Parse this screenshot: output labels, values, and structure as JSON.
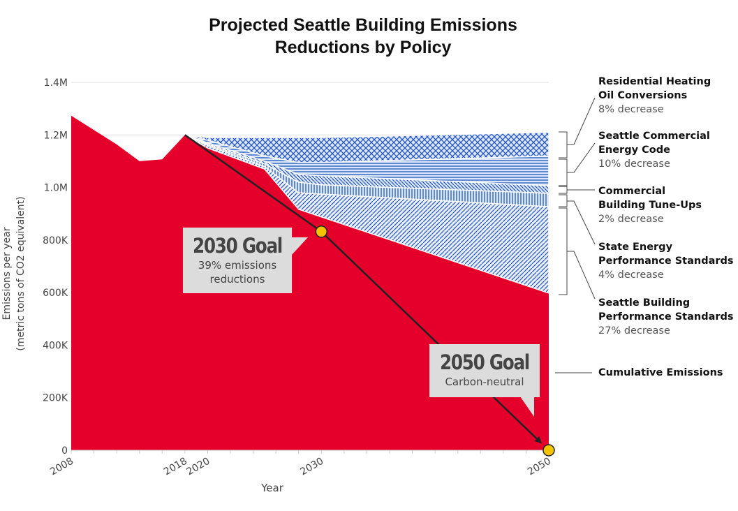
{
  "title_line1": "Projected Seattle Building Emissions",
  "title_line2": "Reductions by Policy",
  "colors": {
    "cumulative": "#e4002b",
    "policy_line": "#2255bb",
    "policy_bg": "#dbe6f7",
    "goal_marker": "#f5c400",
    "callout_bg": "#dcdcdc"
  },
  "chart_data": {
    "type": "area",
    "title": "Projected Seattle Building Emissions Reductions by Policy",
    "xlabel": "Year",
    "ylabel_line1": "Emissions per year",
    "ylabel_line2": "(metric tons of CO2 equivalent)",
    "xlim": [
      2008,
      2050
    ],
    "ylim": [
      0,
      1400000
    ],
    "yticks": [
      0,
      200000,
      400000,
      600000,
      800000,
      1000000,
      1200000,
      1400000
    ],
    "ytick_labels": [
      "0",
      "200K",
      "400K",
      "600K",
      "800K",
      "1.0M",
      "1.2M",
      "1.4M"
    ],
    "xticks": [
      2008,
      2018,
      2020,
      2030,
      2050
    ],
    "xtick_labels": [
      "2008",
      "2018",
      "2020",
      "2030",
      "2050"
    ],
    "grid": true,
    "cumulative": {
      "name": "Cumulative Emissions",
      "x": [
        2008,
        2012,
        2014,
        2016,
        2018,
        2020,
        2025,
        2028,
        2030,
        2050
      ],
      "y": [
        1273000,
        1164000,
        1100000,
        1107000,
        1200000,
        1150000,
        1070000,
        917000,
        888000,
        598000
      ]
    },
    "policy_x": [
      2018,
      2020,
      2025,
      2028,
      2030,
      2050
    ],
    "policies_stacked_bottom_to_top": [
      {
        "name": "Seattle Building Performance Standards",
        "pattern": "diag-up",
        "values": [
          0,
          10000,
          10000,
          63000,
          87000,
          329000
        ]
      },
      {
        "name": "State Energy Performance Standards",
        "pattern": "vertical",
        "values": [
          0,
          5000,
          10000,
          40000,
          35000,
          51000
        ]
      },
      {
        "name": "Commercial Building Tune-Ups",
        "pattern": "diag-down",
        "values": [
          0,
          5000,
          10000,
          30000,
          35000,
          29000
        ]
      },
      {
        "name": "Seattle Commercial Energy Code",
        "pattern": "horizontal",
        "values": [
          0,
          10000,
          20000,
          45000,
          50000,
          113000
        ]
      },
      {
        "name": "Residential Heating Oil Conversions",
        "pattern": "crosshatch",
        "values": [
          0,
          10000,
          70000,
          95000,
          95000,
          90000
        ]
      }
    ],
    "goal_line": {
      "x": [
        2018,
        2030,
        2050
      ],
      "y": [
        1200000,
        832000,
        0
      ]
    },
    "goals": [
      {
        "year": 2030,
        "value": 832000,
        "label": "2030 Goal",
        "note_line1": "39% emissions",
        "note_line2": "reductions"
      },
      {
        "year": 2050,
        "value": 0,
        "label": "2050 Goal",
        "note_line1": "Carbon-neutral"
      }
    ]
  },
  "legend": [
    {
      "title_line1": "Residential Heating",
      "title_line2": "Oil Conversions",
      "sub": "8% decrease"
    },
    {
      "title_line1": "Seattle Commercial",
      "title_line2": "Energy Code",
      "sub": "10% decrease"
    },
    {
      "title_line1": "Commercial",
      "title_line2": "Building Tune-Ups",
      "sub": "2% decrease"
    },
    {
      "title_line1": "State Energy",
      "title_line2": "Performance Standards",
      "sub": "4% decrease"
    },
    {
      "title_line1": "Seattle Building",
      "title_line2": "Performance Standards",
      "sub": "27% decrease"
    },
    {
      "title_line1": "Cumulative Emissions"
    }
  ]
}
